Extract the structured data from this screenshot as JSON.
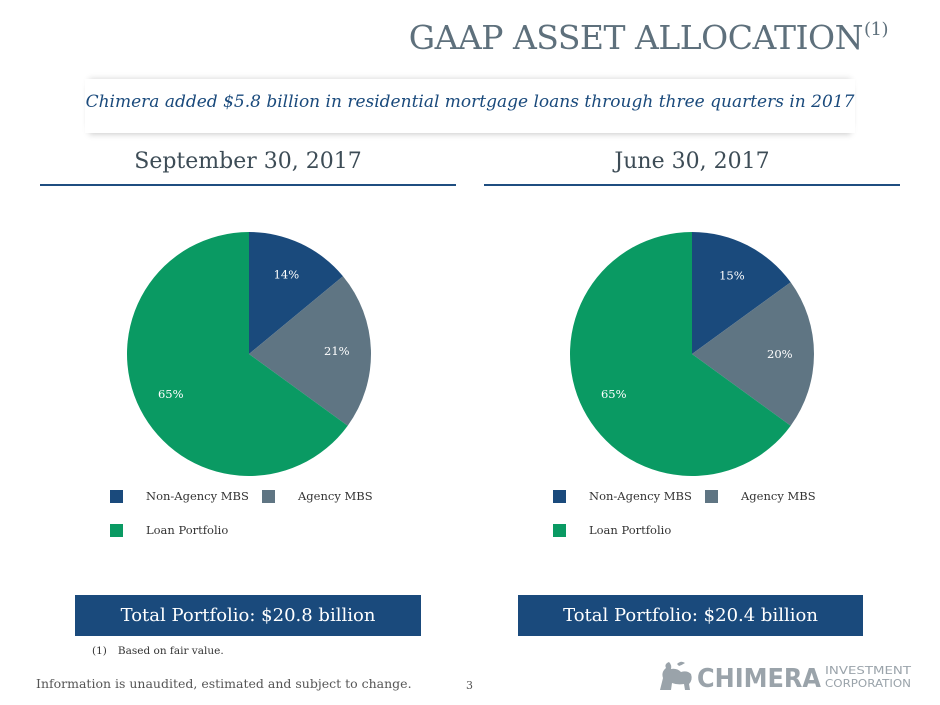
{
  "header": {
    "title": "GAAP ASSET ALLOCATION",
    "title_superscript": "(1)",
    "subtitle": "Chimera added $5.8 billion in residential mortgage loans through three quarters in 2017"
  },
  "colors": {
    "non_agency_mbs": "#1a4a7c",
    "agency_mbs": "#5f7583",
    "loan_portfolio": "#0a9a63",
    "heading_rule": "#1f4e80"
  },
  "chart_data": [
    {
      "type": "pie",
      "title": "September 30, 2017",
      "labels": [
        "Non-Agency MBS",
        "Agency MBS",
        "Loan Portfolio"
      ],
      "values": [
        14,
        21,
        65
      ],
      "value_labels": [
        "14%",
        "21%",
        "65%"
      ],
      "legend_position": "bottom",
      "total": "Total Portfolio: $20.8 billion"
    },
    {
      "type": "pie",
      "title": "June 30, 2017",
      "labels": [
        "Non-Agency MBS",
        "Agency MBS",
        "Loan Portfolio"
      ],
      "values": [
        15,
        20,
        65
      ],
      "value_labels": [
        "15%",
        "20%",
        "65%"
      ],
      "legend_position": "bottom",
      "total": "Total Portfolio: $20.4 billion"
    }
  ],
  "footer": {
    "footnote_number": "(1)",
    "footnote_text": "Based on fair value.",
    "disclaimer": "Information is unaudited, estimated and subject to change.",
    "page_number": "3",
    "logo_name": "CHIMERA",
    "logo_sub_1": "INVESTMENT",
    "logo_sub_2": "CORPORATION"
  }
}
